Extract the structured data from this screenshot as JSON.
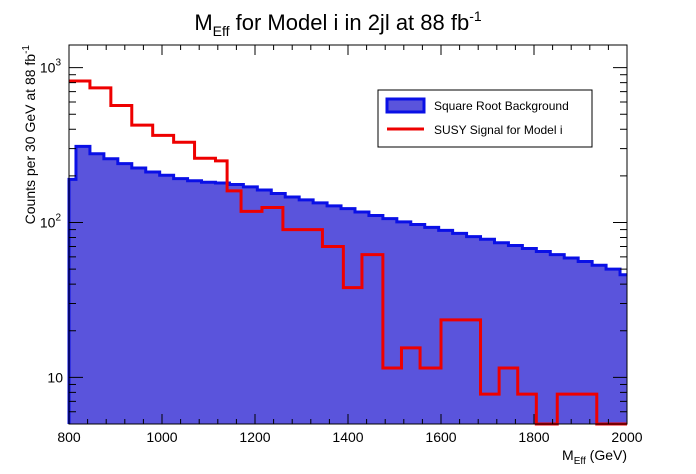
{
  "chart_data": {
    "type": "histogram",
    "title": {
      "main": "M",
      "sub": "Eff",
      "mid": " for Model i in 2jl at 88 fb",
      "sup": "-1"
    },
    "xlabel": {
      "main": "M",
      "sub": "Eff",
      "rest": " (GeV)"
    },
    "ylabel": {
      "text": "Counts per 30 GeV at 88 fb",
      "sup": "-1"
    },
    "x_range": [
      800,
      2000
    ],
    "y_range": [
      5,
      1400
    ],
    "y_scale": "log",
    "bin_width": 30,
    "x_ticks": [
      "800",
      "1000",
      "1200",
      "1400",
      "1600",
      "1800",
      "2000"
    ],
    "y_ticks": [
      {
        "value": 10,
        "label": "10",
        "sup": ""
      },
      {
        "value": 100,
        "label": "10",
        "sup": "2"
      },
      {
        "value": 1000,
        "label": "10",
        "sup": "3"
      }
    ],
    "legend_position": "top-right",
    "series": [
      {
        "name": "Square Root Background",
        "kind": "filled",
        "fill": "#5a54dc",
        "stroke": "#0a10e6",
        "edges": [
          800,
          815,
          845,
          875,
          905,
          935,
          965,
          995,
          1025,
          1055,
          1085,
          1115,
          1145,
          1175,
          1205,
          1235,
          1265,
          1295,
          1325,
          1355,
          1385,
          1415,
          1445,
          1475,
          1505,
          1535,
          1565,
          1595,
          1625,
          1655,
          1685,
          1715,
          1745,
          1775,
          1805,
          1835,
          1865,
          1895,
          1925,
          1955,
          1985,
          2000
        ],
        "values": [
          190,
          310,
          278,
          258,
          240,
          225,
          212,
          202,
          192,
          186,
          182,
          180,
          176,
          170,
          162,
          154,
          146,
          140,
          134,
          128,
          123,
          117,
          111,
          106,
          101,
          97,
          93,
          89,
          85,
          81,
          78,
          74,
          71,
          68,
          65,
          62,
          59,
          56,
          53,
          50,
          46
        ]
      },
      {
        "name": "SUSY Signal for Model i",
        "kind": "step",
        "stroke": "#ee0000",
        "edges": [
          800,
          845,
          890,
          935,
          980,
          1025,
          1070,
          1115,
          1140,
          1170,
          1215,
          1260,
          1300,
          1345,
          1390,
          1430,
          1475,
          1515,
          1555,
          1600,
          1685,
          1725,
          1765,
          1805,
          1850,
          1935,
          2000
        ],
        "values": [
          820,
          740,
          570,
          425,
          365,
          330,
          260,
          250,
          160,
          118,
          125,
          90,
          90,
          70,
          38,
          62,
          11.5,
          15.5,
          11.5,
          23.5,
          7.8,
          11.5,
          7.8,
          5,
          7.8,
          5
        ]
      }
    ]
  }
}
